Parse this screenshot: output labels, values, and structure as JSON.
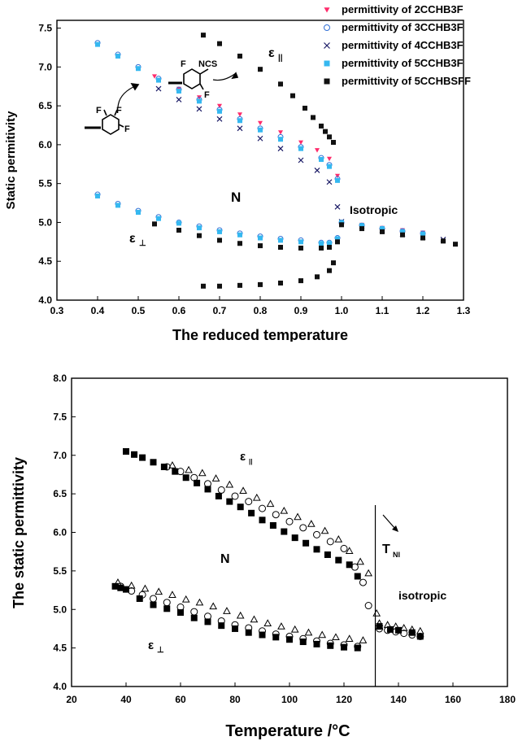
{
  "chart_data": [
    {
      "type": "scatter",
      "title": "",
      "xlabel": "The reduced temperature",
      "ylabel": "Static permitivity",
      "xlim": [
        0.3,
        1.3
      ],
      "ylim": [
        4.0,
        7.6
      ],
      "xticks": [
        "0.3",
        "0.4",
        "0.5",
        "0.6",
        "0.7",
        "0.8",
        "0.9",
        "1.0",
        "1.1",
        "1.2",
        "1.3"
      ],
      "yticks": [
        "4.0",
        "4.5",
        "5.0",
        "5.5",
        "6.0",
        "6.5",
        "7.0",
        "7.5"
      ],
      "legend_position": "top-right",
      "annotations": {
        "eps_par": "ε",
        "eps_par_sub": "||",
        "eps_perp": "ε",
        "eps_perp_sub": "⊥",
        "nematic": "N",
        "isotropic": "Isotropic",
        "mol1_ncs": "NCS",
        "mol_f": "F"
      },
      "series": [
        {
          "name": "permittivity of 2CCHB3F",
          "color": "#ff2b6b",
          "marker": "triangle-down",
          "x": [
            0.54,
            0.6,
            0.65,
            0.7,
            0.75,
            0.8,
            0.85,
            0.9,
            0.94,
            0.97,
            0.99,
            1.0,
            1.05,
            1.1,
            1.15,
            1.2
          ],
          "y": [
            6.88,
            6.72,
            6.61,
            6.5,
            6.39,
            6.28,
            6.16,
            6.03,
            5.93,
            5.82,
            5.6,
            5.01,
            4.97,
            4.93,
            4.9,
            4.87
          ]
        },
        {
          "name": "permittivity of 3CCHB3F",
          "color": "#2f6fd6",
          "marker": "circle-open",
          "x": [
            0.4,
            0.45,
            0.5,
            0.55,
            0.6,
            0.65,
            0.7,
            0.75,
            0.8,
            0.85,
            0.9,
            0.95,
            0.97,
            0.99,
            1.0,
            1.05,
            1.1,
            1.15,
            1.2,
            0.4,
            0.45,
            0.5,
            0.55,
            0.6,
            0.65,
            0.7,
            0.75,
            0.8,
            0.85,
            0.9,
            0.95,
            0.97,
            0.99
          ],
          "y": [
            7.31,
            7.16,
            7.0,
            6.85,
            6.71,
            6.58,
            6.45,
            6.33,
            6.21,
            6.1,
            5.97,
            5.83,
            5.74,
            5.56,
            5.0,
            4.96,
            4.92,
            4.89,
            4.86,
            5.36,
            5.24,
            5.15,
            5.07,
            5.0,
            4.95,
            4.9,
            4.86,
            4.82,
            4.79,
            4.77,
            4.74,
            4.74,
            4.8
          ]
        },
        {
          "name": "permittivity of 4CCHB3F",
          "color": "#1a1a66",
          "marker": "x",
          "x": [
            0.55,
            0.6,
            0.65,
            0.7,
            0.75,
            0.8,
            0.85,
            0.9,
            0.94,
            0.97,
            0.99,
            1.0,
            1.05,
            1.1,
            1.15,
            1.2,
            1.25
          ],
          "y": [
            6.72,
            6.58,
            6.46,
            6.33,
            6.21,
            6.08,
            5.95,
            5.8,
            5.67,
            5.52,
            5.2,
            5.01,
            4.95,
            4.9,
            4.85,
            4.81,
            4.78
          ]
        },
        {
          "name": "permittivity of 5CCHB3F",
          "color": "#35b8f0",
          "marker": "square",
          "x": [
            0.4,
            0.45,
            0.5,
            0.55,
            0.6,
            0.65,
            0.7,
            0.75,
            0.8,
            0.85,
            0.9,
            0.95,
            0.97,
            0.99,
            1.0,
            1.05,
            1.1,
            1.15,
            1.2,
            0.4,
            0.45,
            0.5,
            0.55,
            0.6,
            0.65,
            0.7,
            0.75,
            0.8,
            0.85,
            0.9,
            0.95,
            0.97,
            0.99
          ],
          "y": [
            7.29,
            7.14,
            6.98,
            6.83,
            6.69,
            6.56,
            6.43,
            6.31,
            6.19,
            6.07,
            5.95,
            5.81,
            5.72,
            5.54,
            5.0,
            4.96,
            4.92,
            4.88,
            4.85,
            5.34,
            5.22,
            5.13,
            5.05,
            4.99,
            4.93,
            4.88,
            4.84,
            4.8,
            4.77,
            4.75,
            4.73,
            4.73,
            4.79
          ]
        },
        {
          "name": "permittivity of 5CCHBSFF",
          "color": "#111111",
          "marker": "square",
          "x": [
            0.66,
            0.7,
            0.75,
            0.8,
            0.85,
            0.88,
            0.91,
            0.93,
            0.95,
            0.96,
            0.97,
            0.98,
            0.54,
            0.6,
            0.65,
            0.7,
            0.75,
            0.8,
            0.85,
            0.9,
            0.95,
            0.97,
            0.99,
            1.0,
            1.05,
            1.1,
            1.15,
            1.2,
            1.25,
            1.28,
            0.66,
            0.7,
            0.75,
            0.8,
            0.85,
            0.9,
            0.94,
            0.97,
            0.98
          ],
          "y": [
            7.41,
            7.3,
            7.14,
            6.97,
            6.78,
            6.63,
            6.47,
            6.35,
            6.24,
            6.17,
            6.1,
            6.03,
            4.98,
            4.9,
            4.83,
            4.77,
            4.73,
            4.7,
            4.68,
            4.67,
            4.67,
            4.68,
            4.75,
            4.97,
            4.92,
            4.88,
            4.84,
            4.8,
            4.76,
            4.72,
            4.18,
            4.18,
            4.19,
            4.2,
            4.22,
            4.25,
            4.3,
            4.38,
            4.48
          ]
        }
      ]
    },
    {
      "type": "scatter",
      "title": "",
      "xlabel": "Temperature /°C",
      "ylabel": "The static permittivity",
      "xlim": [
        20,
        180
      ],
      "ylim": [
        4.0,
        8.0
      ],
      "xticks": [
        "20",
        "40",
        "60",
        "80",
        "100",
        "120",
        "140",
        "160",
        "180"
      ],
      "yticks": [
        "4.0",
        "4.5",
        "5.0",
        "5.5",
        "6.0",
        "6.5",
        "7.0",
        "7.5",
        "8.0"
      ],
      "transition_line_x": 131.5,
      "annotations": {
        "eps_par": "ε",
        "eps_par_sub": "||",
        "eps_perp": "ε",
        "eps_perp_sub": "⊥",
        "nematic": "N",
        "tni": "T",
        "tni_sub": "NI",
        "isotropic": "isotropic"
      },
      "series": [
        {
          "marker": "square-filled",
          "x": [
            40,
            43,
            46,
            50,
            54,
            58,
            62,
            66,
            70,
            74,
            78,
            82,
            86,
            90,
            94,
            98,
            102,
            106,
            110,
            114,
            118,
            122,
            125,
            36,
            38,
            40,
            45,
            50,
            55,
            60,
            65,
            70,
            75,
            80,
            85,
            90,
            95,
            100,
            105,
            110,
            115,
            120,
            125,
            133,
            137,
            140,
            145,
            148
          ],
          "y": [
            7.05,
            7.01,
            6.97,
            6.91,
            6.85,
            6.79,
            6.71,
            6.64,
            6.56,
            6.47,
            6.4,
            6.33,
            6.25,
            6.16,
            6.09,
            6.01,
            5.93,
            5.86,
            5.78,
            5.71,
            5.64,
            5.58,
            5.43,
            5.3,
            5.28,
            5.26,
            5.14,
            5.06,
            5.01,
            4.96,
            4.89,
            4.84,
            4.79,
            4.75,
            4.7,
            4.67,
            4.64,
            4.61,
            4.58,
            4.55,
            4.53,
            4.51,
            4.5,
            4.78,
            4.74,
            4.73,
            4.7,
            4.65
          ]
        },
        {
          "marker": "circle-open",
          "x": [
            55,
            60,
            65,
            70,
            75,
            80,
            85,
            90,
            95,
            100,
            105,
            110,
            115,
            120,
            124,
            127,
            129,
            38,
            42,
            46,
            50,
            55,
            60,
            65,
            70,
            75,
            80,
            85,
            90,
            95,
            100,
            105,
            110,
            115,
            120,
            125,
            133,
            136,
            139,
            142,
            145,
            148
          ],
          "y": [
            6.85,
            6.79,
            6.71,
            6.63,
            6.55,
            6.47,
            6.4,
            6.31,
            6.23,
            6.14,
            6.06,
            5.97,
            5.88,
            5.79,
            5.55,
            5.35,
            5.05,
            5.3,
            5.24,
            5.19,
            5.14,
            5.09,
            5.03,
            4.97,
            4.91,
            4.85,
            4.8,
            4.76,
            4.72,
            4.68,
            4.65,
            4.62,
            4.59,
            4.56,
            4.54,
            4.52,
            4.75,
            4.73,
            4.71,
            4.69,
            4.67,
            4.65
          ]
        },
        {
          "marker": "triangle-open",
          "x": [
            57,
            63,
            68,
            73,
            78,
            83,
            88,
            93,
            98,
            103,
            108,
            113,
            118,
            122,
            126,
            129,
            132,
            37,
            42,
            47,
            52,
            57,
            62,
            67,
            72,
            77,
            82,
            87,
            92,
            97,
            102,
            107,
            112,
            117,
            122,
            127,
            133,
            136,
            139,
            142,
            145,
            148
          ],
          "y": [
            6.87,
            6.81,
            6.77,
            6.7,
            6.62,
            6.54,
            6.45,
            6.37,
            6.28,
            6.2,
            6.11,
            6.02,
            5.91,
            5.76,
            5.62,
            5.47,
            4.95,
            5.35,
            5.31,
            5.27,
            5.23,
            5.19,
            5.13,
            5.09,
            5.04,
            4.98,
            4.92,
            4.87,
            4.82,
            4.78,
            4.74,
            4.7,
            4.67,
            4.64,
            4.62,
            4.6,
            4.82,
            4.8,
            4.78,
            4.76,
            4.74,
            4.72
          ]
        }
      ]
    }
  ]
}
